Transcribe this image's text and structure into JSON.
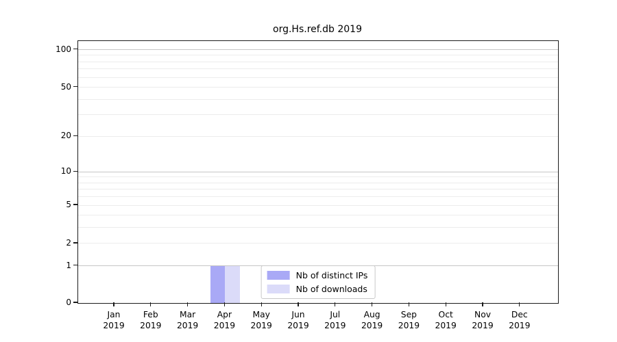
{
  "title": "org.Hs.ref.db 2019",
  "chart_data": {
    "type": "bar",
    "title": "org.Hs.ref.db 2019",
    "categories": [
      "Jan 2019",
      "Feb 2019",
      "Mar 2019",
      "Apr 2019",
      "May 2019",
      "Jun 2019",
      "Jul 2019",
      "Aug 2019",
      "Sep 2019",
      "Oct 2019",
      "Nov 2019",
      "Dec 2019"
    ],
    "series": [
      {
        "name": "Nb of distinct IPs",
        "color": "#a9a9f6",
        "values": [
          0,
          0,
          0,
          1,
          0,
          0,
          0,
          0,
          0,
          0,
          0,
          0
        ]
      },
      {
        "name": "Nb of downloads",
        "color": "#dbdbf9",
        "values": [
          0,
          0,
          0,
          1,
          0,
          0,
          0,
          0,
          0,
          0,
          0,
          0
        ]
      }
    ],
    "xlabel": "",
    "ylabel": "",
    "y_scale": "log1p",
    "y_tick_labels": [
      "0",
      "1",
      "2",
      "5",
      "10",
      "20",
      "50",
      "100"
    ],
    "y_tick_values": [
      0,
      1,
      2,
      5,
      10,
      20,
      50,
      100
    ],
    "y_major_gridlines": [
      1,
      10,
      100
    ],
    "y_minor_gridlines": [
      2,
      3,
      4,
      5,
      6,
      7,
      8,
      9,
      20,
      30,
      40,
      50,
      60,
      70,
      80,
      90
    ],
    "ylim": [
      0,
      110
    ],
    "grid": true,
    "legend": {
      "position": "lower center",
      "entries": [
        "Nb of distinct IPs",
        "Nb of downloads"
      ]
    }
  },
  "colors": {
    "bar_distinct_ips": "#a9a9f6",
    "bar_downloads": "#dbdbf9",
    "grid_major": "#c6c6c6",
    "grid_minor": "#ececec",
    "axis": "#1a1a1a",
    "text": "#000000",
    "legend_border": "#c8c8c8",
    "background": "#ffffff"
  }
}
